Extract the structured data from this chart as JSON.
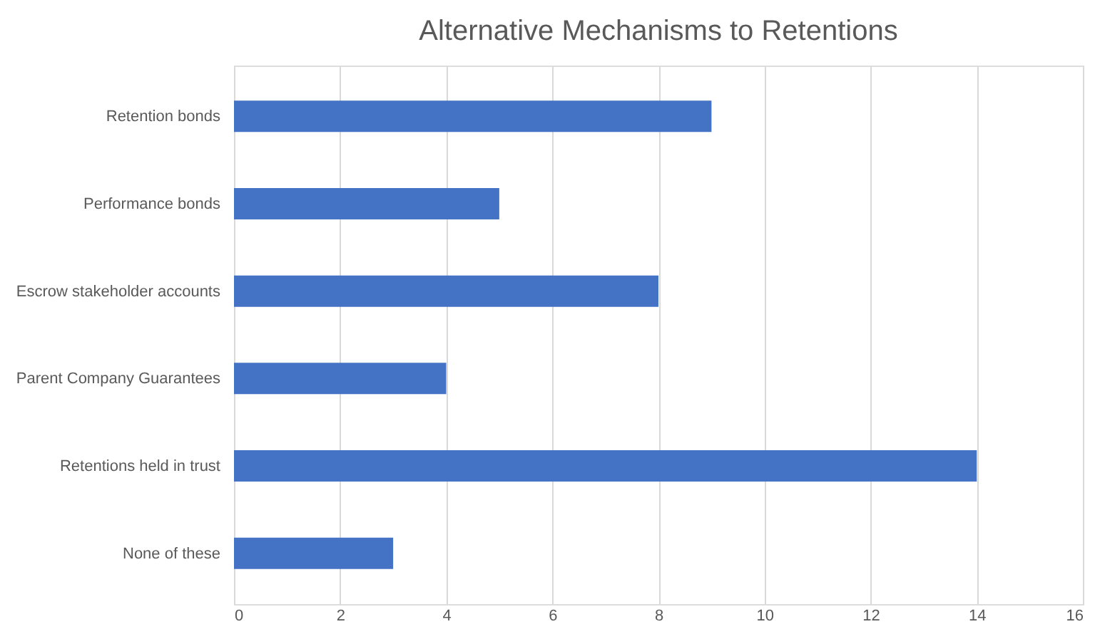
{
  "chart_data": {
    "type": "bar",
    "orientation": "horizontal",
    "title": "Alternative Mechanisms to Retentions",
    "categories": [
      "Retention bonds",
      "Performance bonds",
      "Escrow stakeholder accounts",
      "Parent Company Guarantees",
      "Retentions held in trust",
      "None of these"
    ],
    "values": [
      9,
      5,
      8,
      4,
      14,
      3
    ],
    "color": "#4472c4",
    "xlim": [
      0,
      16
    ],
    "xticks": [
      0,
      2,
      4,
      6,
      8,
      10,
      12,
      14,
      16
    ],
    "grid": "x"
  }
}
